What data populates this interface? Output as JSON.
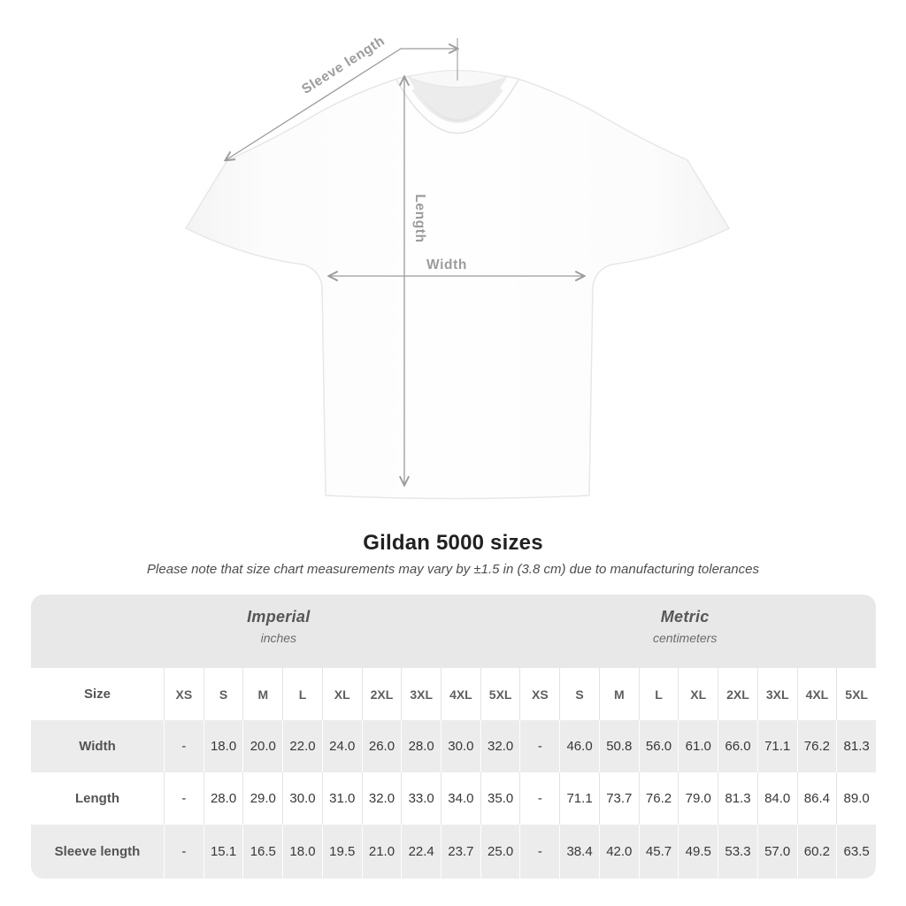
{
  "page": {
    "title": "Gildan 5000 sizes",
    "subtitle": "Please note that size chart measurements may vary by ±1.5 in (3.8 cm) due to manufacturing tolerances"
  },
  "diagram": {
    "sleeve_label": "Sleeve length",
    "length_label": "Length",
    "width_label": "Width"
  },
  "table": {
    "size_label": "Size",
    "groups": [
      {
        "label": "Imperial",
        "sublabel": "inches"
      },
      {
        "label": "Metric",
        "sublabel": "centimeters"
      }
    ],
    "sizes": [
      "XS",
      "S",
      "M",
      "L",
      "XL",
      "2XL",
      "3XL",
      "4XL",
      "5XL"
    ],
    "rows": [
      {
        "label": "Width",
        "imperial": [
          "-",
          "18.0",
          "20.0",
          "22.0",
          "24.0",
          "26.0",
          "28.0",
          "30.0",
          "32.0"
        ],
        "metric": [
          "-",
          "46.0",
          "50.8",
          "56.0",
          "61.0",
          "66.0",
          "71.1",
          "76.2",
          "81.3"
        ]
      },
      {
        "label": "Length",
        "imperial": [
          "-",
          "28.0",
          "29.0",
          "30.0",
          "31.0",
          "32.0",
          "33.0",
          "34.0",
          "35.0"
        ],
        "metric": [
          "-",
          "71.1",
          "73.7",
          "76.2",
          "79.0",
          "81.3",
          "84.0",
          "86.4",
          "89.0"
        ]
      },
      {
        "label": "Sleeve length",
        "imperial": [
          "-",
          "15.1",
          "16.5",
          "18.0",
          "19.5",
          "21.0",
          "22.4",
          "23.7",
          "25.0"
        ],
        "metric": [
          "-",
          "38.4",
          "42.0",
          "45.7",
          "49.5",
          "53.3",
          "57.0",
          "60.2",
          "63.5"
        ]
      }
    ]
  },
  "colors": {
    "band_bg": "#e8e8e8",
    "stripe_bg": "#ececec",
    "measure_line": "#9c9c9c",
    "title_text": "#212121",
    "value_text": "#383838"
  }
}
